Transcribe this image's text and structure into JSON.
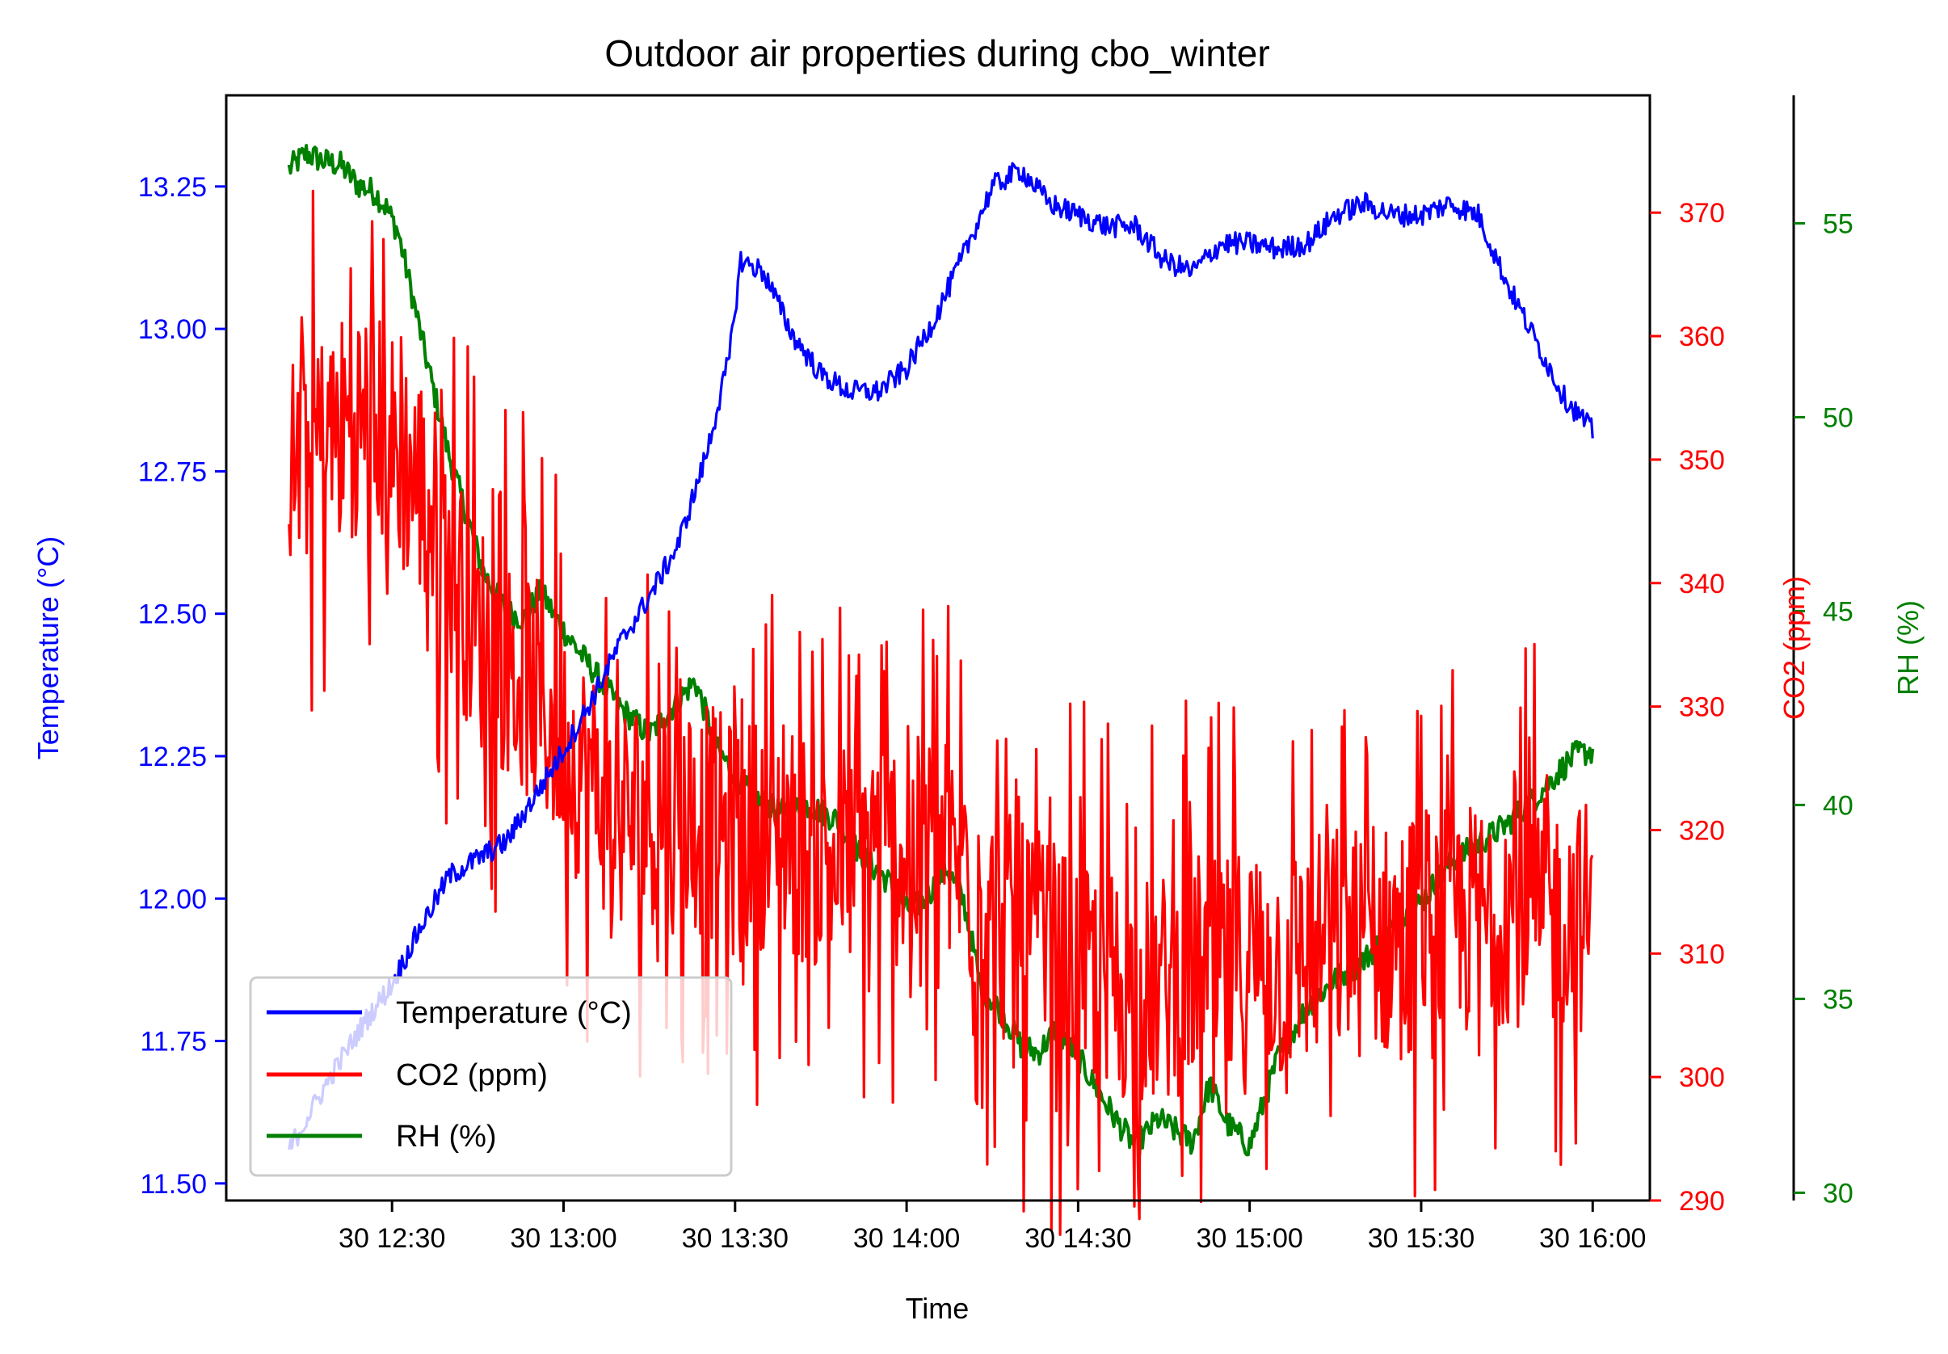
{
  "chart_data": {
    "type": "line",
    "title": "Outdoor air properties during cbo_winter",
    "xlabel": "Time",
    "x_tick_labels": [
      "30 12:30",
      "30 13:00",
      "30 13:30",
      "30 14:00",
      "30 14:30",
      "30 15:00",
      "30 15:30",
      "30 16:00"
    ],
    "x_tick_minutes": [
      750,
      780,
      810,
      840,
      870,
      900,
      930,
      960
    ],
    "x_range_minutes": [
      721,
      970
    ],
    "axes": {
      "temperature": {
        "label": "Temperature (°C)",
        "color": "#0000ff",
        "ylim": [
          11.47,
          13.41
        ],
        "ticks": [
          "11.50",
          "11.75",
          "12.00",
          "12.25",
          "12.50",
          "12.75",
          "13.00",
          "13.25"
        ],
        "tick_values": [
          11.5,
          11.75,
          12.0,
          12.25,
          12.5,
          12.75,
          13.0,
          13.25
        ],
        "side": "left"
      },
      "co2": {
        "label": "CO2 (ppm)",
        "color": "#ff0000",
        "ylim": [
          290,
          379.5
        ],
        "ticks": [
          "290",
          "300",
          "310",
          "320",
          "330",
          "340",
          "350",
          "360",
          "370"
        ],
        "tick_values": [
          290,
          300,
          310,
          320,
          330,
          340,
          350,
          360,
          370
        ],
        "side": "right"
      },
      "rh": {
        "label": "RH (%)",
        "color": "#008000",
        "ylim": [
          29.8,
          58.3
        ],
        "ticks": [
          "30",
          "35",
          "40",
          "45",
          "50",
          "55"
        ],
        "tick_values": [
          30,
          35,
          40,
          45,
          50,
          55
        ],
        "side": "right-outer"
      }
    },
    "series": [
      {
        "name": "Temperature (°C)",
        "axis": "temperature",
        "color": "#0000ff",
        "noise": 0.02,
        "x": [
          732,
          740,
          745,
          750,
          755,
          760,
          765,
          770,
          775,
          780,
          785,
          790,
          795,
          800,
          805,
          809,
          811,
          815,
          820,
          825,
          830,
          835,
          840,
          845,
          850,
          855,
          860,
          865,
          870,
          875,
          880,
          885,
          890,
          895,
          900,
          905,
          910,
          915,
          920,
          925,
          930,
          935,
          940,
          945,
          950,
          955,
          960
        ],
        "y": [
          11.56,
          11.7,
          11.78,
          11.85,
          11.95,
          12.04,
          12.07,
          12.1,
          12.18,
          12.26,
          12.35,
          12.45,
          12.53,
          12.62,
          12.78,
          12.95,
          13.12,
          13.1,
          12.99,
          12.92,
          12.89,
          12.89,
          12.93,
          13.02,
          13.13,
          13.25,
          13.28,
          13.22,
          13.2,
          13.18,
          13.18,
          13.12,
          13.1,
          13.15,
          13.15,
          13.14,
          13.15,
          13.2,
          13.22,
          13.2,
          13.2,
          13.22,
          13.2,
          13.08,
          12.98,
          12.88,
          12.82
        ]
      },
      {
        "name": "CO2 (ppm)",
        "axis": "co2",
        "color": "#ff0000",
        "noise": 16,
        "x": [
          732,
          740,
          745,
          750,
          755,
          760,
          765,
          770,
          775,
          780,
          785,
          790,
          795,
          800,
          805,
          810,
          815,
          820,
          825,
          830,
          835,
          840,
          845,
          850,
          855,
          860,
          865,
          870,
          875,
          880,
          885,
          890,
          895,
          900,
          905,
          910,
          915,
          920,
          925,
          930,
          935,
          940,
          945,
          950,
          955,
          960
        ],
        "y": [
          349,
          352,
          354,
          351,
          348,
          342,
          336,
          334,
          331,
          327,
          324,
          321,
          322,
          321,
          321,
          319,
          320,
          319,
          318,
          318,
          319,
          318,
          318,
          317,
          313,
          311,
          310,
          308,
          308,
          307,
          307,
          309,
          308,
          310,
          309,
          310,
          311,
          311,
          311,
          313,
          312,
          313,
          314,
          313,
          313,
          313
        ]
      },
      {
        "name": "RH (%)",
        "axis": "rh",
        "color": "#008000",
        "noise": 0.35,
        "x": [
          732,
          735,
          738,
          741,
          744,
          747,
          749,
          751,
          753,
          756,
          760,
          763,
          766,
          770,
          773,
          776,
          780,
          785,
          790,
          795,
          800,
          803,
          807,
          810,
          813,
          818,
          823,
          828,
          832,
          837,
          840,
          843,
          847,
          850,
          853,
          856,
          860,
          863,
          866,
          870,
          874,
          877,
          880,
          884,
          888,
          890,
          893,
          896,
          900,
          905,
          910,
          915,
          920,
          925,
          930,
          935,
          940,
          945,
          950,
          955,
          957,
          960
        ],
        "y": [
          56.4,
          56.8,
          56.6,
          56.5,
          56.0,
          55.8,
          55.4,
          54.8,
          53.5,
          51.5,
          49.0,
          47.5,
          46.0,
          45.0,
          44.8,
          45.5,
          44.5,
          43.5,
          42.5,
          41.8,
          42.7,
          43.2,
          41.4,
          40.8,
          40.2,
          39.8,
          40.0,
          39.6,
          38.7,
          38.0,
          37.3,
          37.5,
          38.4,
          37.5,
          35.3,
          34.8,
          33.8,
          33.6,
          34.2,
          33.5,
          32.5,
          31.8,
          31.2,
          31.9,
          31.5,
          31.3,
          32.8,
          31.8,
          31.2,
          33.5,
          34.8,
          35.5,
          36.0,
          36.8,
          37.5,
          38.5,
          39.0,
          39.5,
          40.2,
          41.0,
          41.3,
          41.4
        ]
      }
    ],
    "legend": {
      "placement": "lower-left",
      "entries": [
        "Temperature (°C)",
        "CO2 (ppm)",
        "RH (%)"
      ]
    }
  }
}
